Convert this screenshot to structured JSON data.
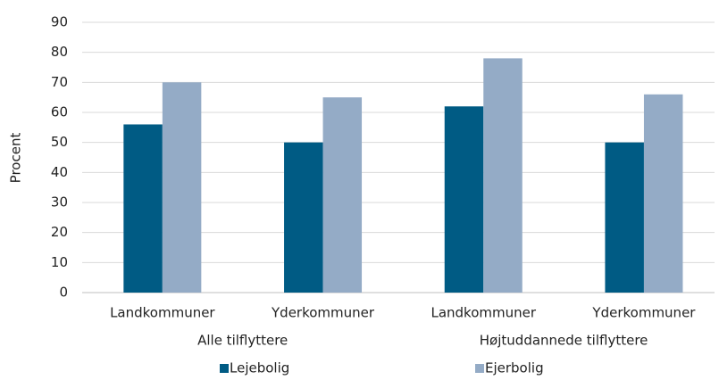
{
  "chart_data": {
    "type": "bar",
    "y_label": "Procent",
    "categories": [
      "Landkommuner",
      "Yderkommuner",
      "Landkommuner",
      "Yderkommuner"
    ],
    "groups": [
      "Alle tilflyttere",
      "Højtuddannede tilflyttere"
    ],
    "series": [
      {
        "name": "Lejebolig",
        "color": "#005b84",
        "values": [
          56,
          50,
          62,
          50
        ]
      },
      {
        "name": "Ejerbolig",
        "color": "#94abc6",
        "values": [
          70,
          65,
          78,
          66
        ]
      }
    ],
    "ylim": [
      0,
      90
    ],
    "yticks": [
      0,
      10,
      20,
      30,
      40,
      50,
      60,
      70,
      80,
      90
    ],
    "grid": true,
    "legend": "bottom"
  }
}
